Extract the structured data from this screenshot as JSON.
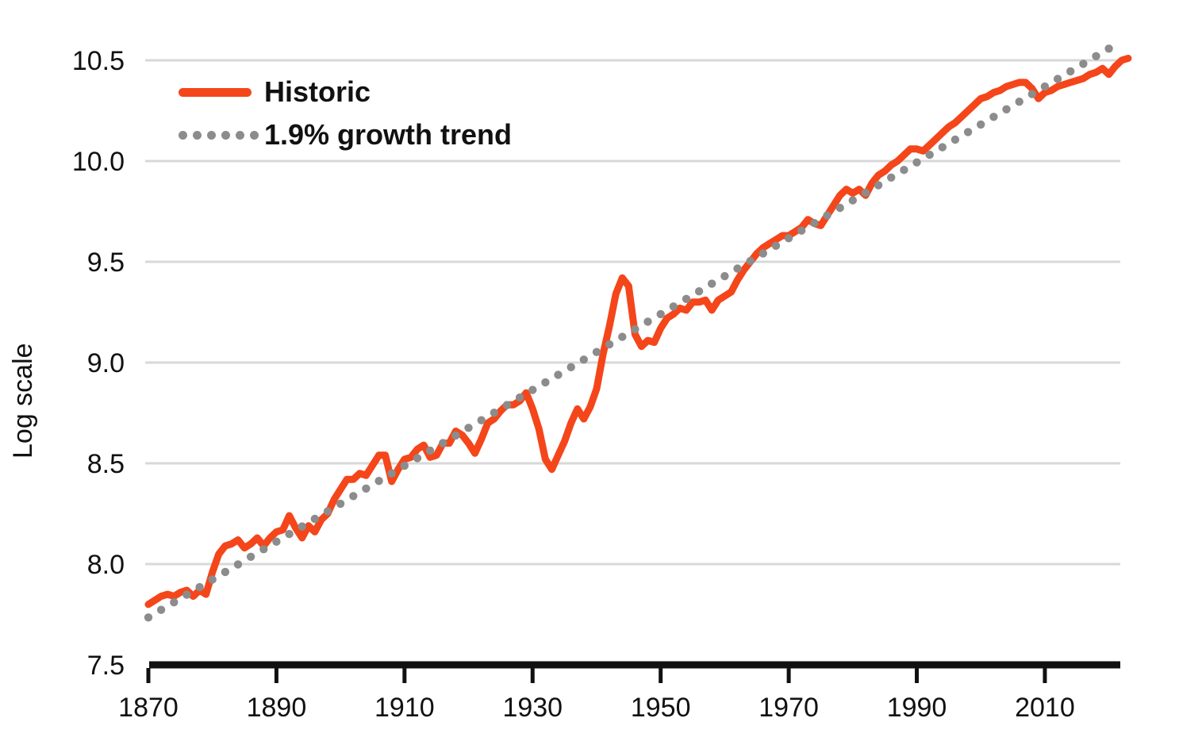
{
  "colors": {
    "historic": "#F4461A",
    "trend": "#8C8C8C",
    "gridline": "#D8D8D8",
    "axis": "#111111",
    "text": "#111111",
    "background": "#FFFFFF"
  },
  "chart_data": {
    "type": "line",
    "title": "",
    "xlabel": "",
    "ylabel": "Log scale",
    "ylim": [
      7.5,
      10.5
    ],
    "xlim": [
      1870,
      2025
    ],
    "grid": "horizontal gridlines at each y tick, no vertical gridlines, no left spine",
    "legend_position": "top-left inside plot",
    "x_tick_labels": [
      "1870",
      "1890",
      "1910",
      "1930",
      "1950",
      "1970",
      "1990",
      "2010"
    ],
    "y_tick_labels": [
      "10.5",
      "10.0",
      "9.5",
      "9.0",
      "8.5",
      "8.0",
      "7.5"
    ],
    "series": [
      {
        "name": "Historic",
        "style": "solid",
        "color": "#F4461A",
        "start_year": 1870,
        "end_year": 2023,
        "values": [
          7.8,
          7.82,
          7.84,
          7.85,
          7.84,
          7.86,
          7.87,
          7.84,
          7.87,
          7.85,
          7.96,
          8.05,
          8.09,
          8.1,
          8.12,
          8.08,
          8.1,
          8.13,
          8.09,
          8.13,
          8.16,
          8.17,
          8.24,
          8.18,
          8.13,
          8.19,
          8.16,
          8.22,
          8.25,
          8.32,
          8.37,
          8.42,
          8.42,
          8.45,
          8.44,
          8.49,
          8.54,
          8.54,
          8.41,
          8.47,
          8.52,
          8.53,
          8.57,
          8.59,
          8.53,
          8.54,
          8.6,
          8.6,
          8.66,
          8.64,
          8.6,
          8.55,
          8.62,
          8.7,
          8.72,
          8.76,
          8.79,
          8.79,
          8.81,
          8.85,
          8.77,
          8.67,
          8.52,
          8.47,
          8.54,
          8.61,
          8.7,
          8.77,
          8.72,
          8.78,
          8.87,
          9.04,
          9.18,
          9.34,
          9.42,
          9.38,
          9.14,
          9.08,
          9.11,
          9.1,
          9.17,
          9.22,
          9.24,
          9.27,
          9.26,
          9.3,
          9.3,
          9.31,
          9.26,
          9.31,
          9.33,
          9.35,
          9.41,
          9.46,
          9.5,
          9.54,
          9.57,
          9.59,
          9.61,
          9.63,
          9.63,
          9.65,
          9.67,
          9.71,
          9.69,
          9.68,
          9.73,
          9.78,
          9.83,
          9.86,
          9.84,
          9.86,
          9.83,
          9.89,
          9.93,
          9.95,
          9.98,
          10.0,
          10.03,
          10.06,
          10.06,
          10.05,
          10.08,
          10.11,
          10.14,
          10.17,
          10.19,
          10.22,
          10.25,
          10.28,
          10.31,
          10.32,
          10.34,
          10.35,
          10.37,
          10.38,
          10.39,
          10.39,
          10.36,
          10.31,
          10.34,
          10.35,
          10.37,
          10.38,
          10.39,
          10.4,
          10.41,
          10.43,
          10.44,
          10.46,
          10.43,
          10.47,
          10.5,
          10.51
        ]
      },
      {
        "name": "1.9% growth trend",
        "style": "dotted",
        "color": "#8C8C8C",
        "growth_rate_percent": 1.9,
        "start_year": 1870,
        "end_year": 2020,
        "point_interval_years": 2,
        "value_at_1870": 7.735,
        "log_increment_per_year": 0.01882
      }
    ]
  },
  "legend": {
    "historic_label": "Historic",
    "trend_label": "1.9% growth trend"
  },
  "y_axis_title": "Log scale"
}
